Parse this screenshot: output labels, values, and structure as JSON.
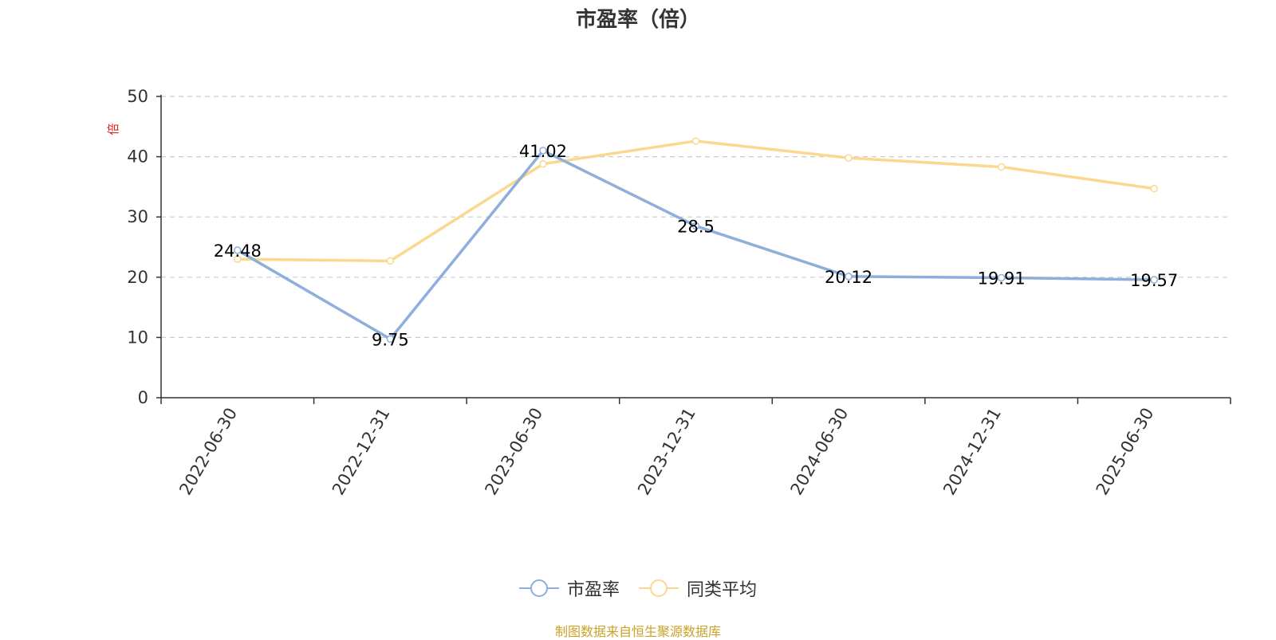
{
  "chart_data": {
    "type": "line",
    "title": "市盈率（倍）",
    "ylabel": "倍",
    "xlabel": "",
    "categories": [
      "2022-06-30",
      "2022-12-31",
      "2023-06-30",
      "2023-12-31",
      "2024-06-30",
      "2024-12-31",
      "2025-06-30"
    ],
    "ylim": [
      0,
      50
    ],
    "yticks": [
      "0",
      "10",
      "20",
      "30",
      "40",
      "50"
    ],
    "grid": true,
    "legend_position": "bottom",
    "series": [
      {
        "name": "市盈率",
        "color": "#8eaedb",
        "values": [
          24.48,
          9.75,
          41.02,
          28.5,
          20.12,
          19.91,
          19.57
        ],
        "labels": [
          "24.48",
          "9.75",
          "41.02",
          "28.5",
          "20.12",
          "19.91",
          "19.57"
        ]
      },
      {
        "name": "同类平均",
        "color": "#fbd890",
        "values": [
          23.0,
          22.7,
          38.8,
          42.6,
          39.8,
          38.3,
          34.7
        ]
      }
    ]
  },
  "source_note": "制图数据来自恒生聚源数据库",
  "ylabel_color": "#e0201b"
}
